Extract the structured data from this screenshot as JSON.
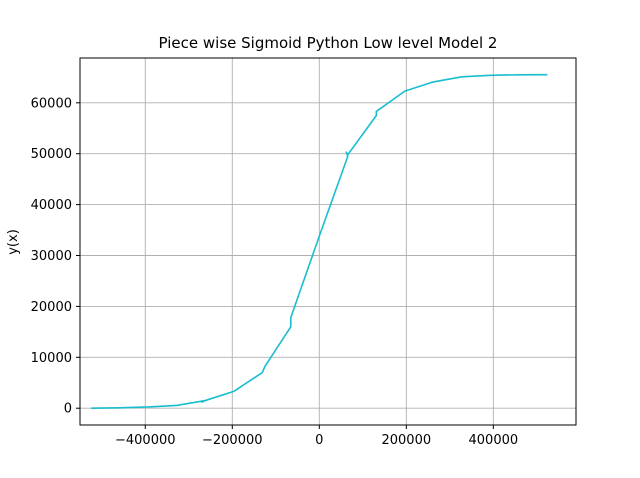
{
  "chart_data": {
    "type": "line",
    "title": "Piece wise Sigmoid Python Low level Model 2",
    "xlabel": "",
    "ylabel": "y(x)",
    "xlim": [
      -550000,
      590000
    ],
    "ylim": [
      -3300,
      68800
    ],
    "grid": true,
    "x_ticks": [
      -400000,
      -200000,
      0,
      200000,
      400000
    ],
    "x_tick_labels": [
      "−400000",
      "−200000",
      "0",
      "200000",
      "400000"
    ],
    "y_ticks": [
      0,
      10000,
      20000,
      30000,
      40000,
      50000,
      60000
    ],
    "y_tick_labels": [
      "0",
      "10000",
      "20000",
      "30000",
      "40000",
      "50000",
      "60000"
    ],
    "series": [
      {
        "color": "#17becf",
        "x": [
          -524288,
          -458752,
          -393216,
          -327680,
          -262144,
          -270000,
          -262144,
          -196608,
          -131072,
          -125000,
          -65536,
          -65536,
          0,
          65536,
          62000,
          65536,
          131072,
          131072,
          196608,
          262144,
          258000,
          262144,
          327680,
          393216,
          458752,
          524288
        ],
        "y": [
          0,
          80,
          250,
          550,
          1500,
          1200,
          1500,
          3300,
          7000,
          8200,
          16000,
          17800,
          33800,
          49500,
          50300,
          49800,
          57500,
          58300,
          62300,
          64100,
          64000,
          64100,
          65100,
          65400,
          65500,
          65530
        ]
      }
    ]
  }
}
